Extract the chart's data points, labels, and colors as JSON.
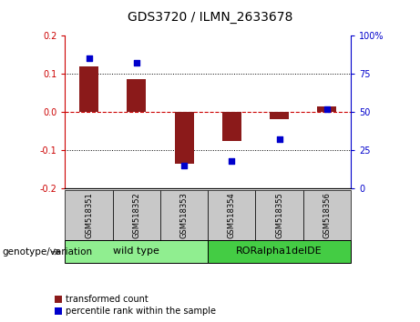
{
  "title": "GDS3720 / ILMN_2633678",
  "samples": [
    "GSM518351",
    "GSM518352",
    "GSM518353",
    "GSM518354",
    "GSM518355",
    "GSM518356"
  ],
  "bar_values": [
    0.12,
    0.085,
    -0.135,
    -0.075,
    -0.02,
    0.015
  ],
  "scatter_values": [
    85,
    82,
    15,
    18,
    32,
    52
  ],
  "ylim_left": [
    -0.2,
    0.2
  ],
  "ylim_right": [
    0,
    100
  ],
  "yticks_left": [
    -0.2,
    -0.1,
    0.0,
    0.1,
    0.2
  ],
  "yticks_right": [
    0,
    25,
    50,
    75,
    100
  ],
  "bar_color": "#8B1A1A",
  "scatter_color": "#0000CC",
  "zero_line_color": "#CC0000",
  "grid_color": "#000000",
  "bg_xtick": "#C8C8C8",
  "bg_wt": "#90EE90",
  "bg_ror": "#44CC44",
  "wild_type_label": "wild type",
  "ror_label": "RORalpha1delDE",
  "genotype_label": "genotype/variation",
  "legend_bar": "transformed count",
  "legend_scatter": "percentile rank within the sample"
}
